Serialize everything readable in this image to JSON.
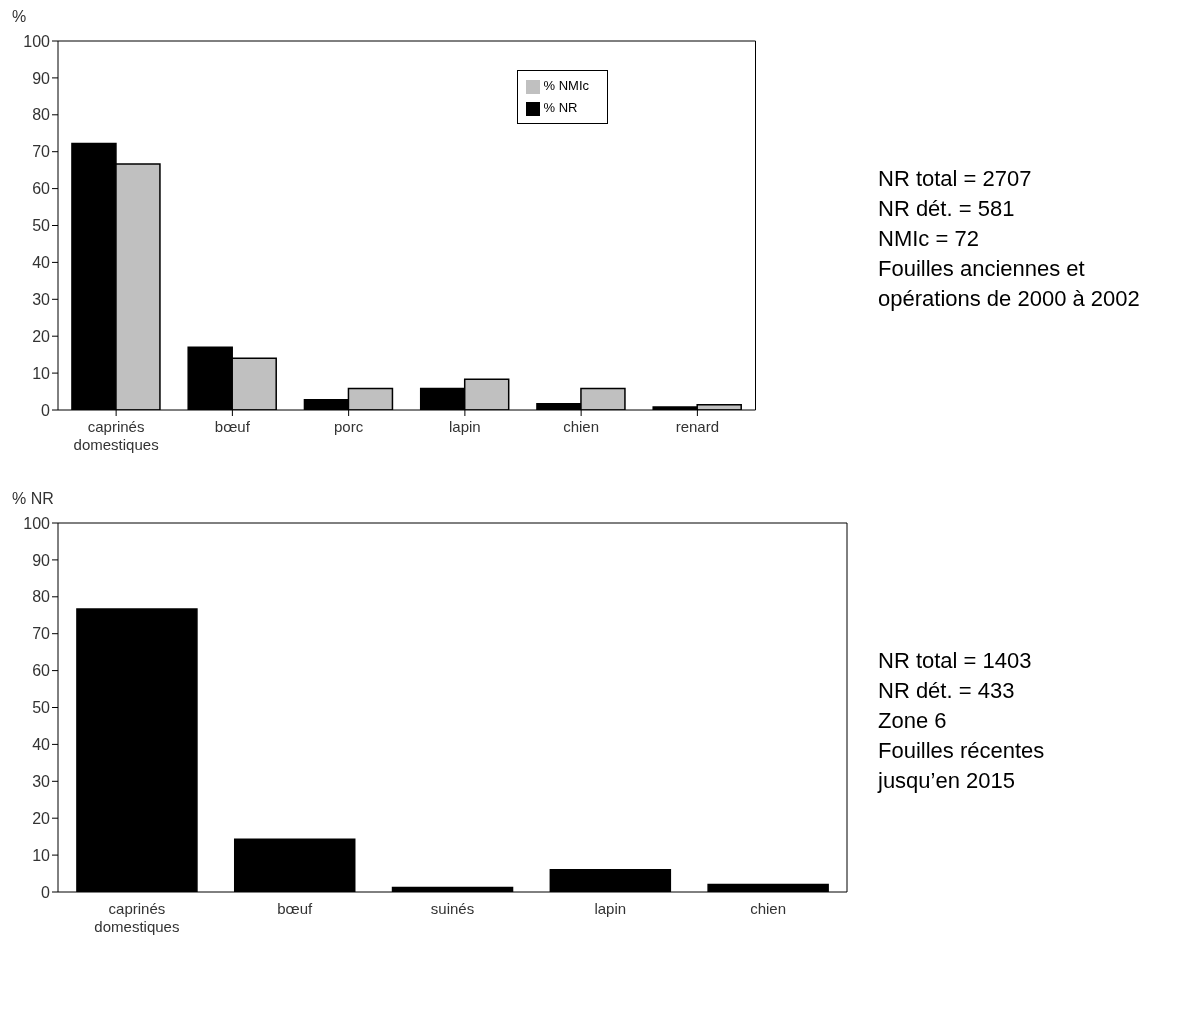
{
  "chart_data": [
    {
      "type": "bar",
      "ylabel": "%",
      "categories": [
        "caprinés domestiques",
        "bœuf",
        "porc",
        "lapin",
        "chien",
        "renard"
      ],
      "series": [
        {
          "name": "% NR",
          "color": "#000000",
          "values": [
            72.2,
            17,
            2.8,
            5.8,
            1.7,
            0.8
          ]
        },
        {
          "name": "% NMIc",
          "color": "#c0c0c0",
          "values": [
            66.7,
            14,
            5.8,
            8.3,
            5.8,
            1.4
          ]
        }
      ],
      "ylim": [
        0,
        100
      ],
      "yticks": [
        0,
        10,
        20,
        30,
        40,
        50,
        60,
        70,
        80,
        90,
        100
      ],
      "grid": false,
      "legend": "top right",
      "annotations": [
        "NR total = 2707",
        "NR dét. = 581",
        "NMIc = 72",
        "Fouilles anciennes et",
        "opérations de 2000 à 2002"
      ]
    },
    {
      "type": "bar",
      "ylabel": "% NR",
      "categories": [
        "caprinés domestiques",
        "bœuf",
        "suinés",
        "lapin",
        "chien"
      ],
      "series": [
        {
          "color": "#000000",
          "values": [
            76.7,
            14.3,
            1.2,
            6,
            2
          ]
        }
      ],
      "ylim": [
        0,
        100
      ],
      "yticks": [
        0,
        10,
        20,
        30,
        40,
        50,
        60,
        70,
        80,
        90,
        100
      ],
      "grid": false,
      "legend": false,
      "annotations": [
        "NR total = 1403",
        "NR dét. = 433",
        "Zone 6",
        "Fouilles récentes",
        "jusqu’en 2015"
      ]
    }
  ]
}
